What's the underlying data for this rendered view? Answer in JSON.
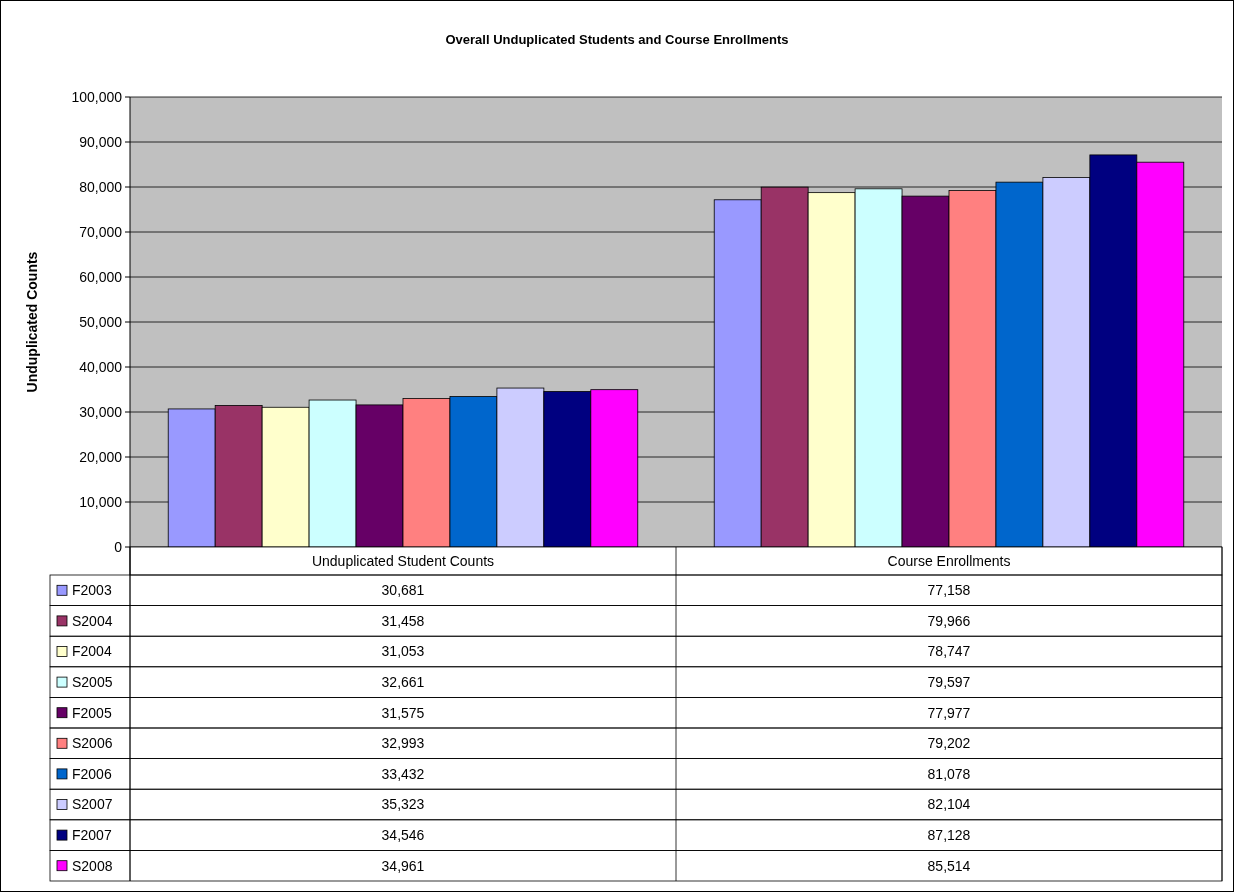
{
  "chart_data": {
    "type": "bar",
    "title": "Overall Unduplicated Students and Course Enrollments",
    "ylabel": "Unduplicated Counts",
    "categories": [
      "Unduplicated Student Counts",
      "Course Enrollments"
    ],
    "series": [
      {
        "name": "F2003",
        "color": "#9999ff",
        "values": [
          30681,
          77158
        ],
        "value_labels": [
          "30,681",
          "77,158"
        ]
      },
      {
        "name": "S2004",
        "color": "#993366",
        "values": [
          31458,
          79966
        ],
        "value_labels": [
          "31,458",
          "79,966"
        ]
      },
      {
        "name": "F2004",
        "color": "#ffffcc",
        "values": [
          31053,
          78747
        ],
        "value_labels": [
          "31,053",
          "78,747"
        ]
      },
      {
        "name": "S2005",
        "color": "#ccffff",
        "values": [
          32661,
          79597
        ],
        "value_labels": [
          "32,661",
          "79,597"
        ]
      },
      {
        "name": "F2005",
        "color": "#660066",
        "values": [
          31575,
          77977
        ],
        "value_labels": [
          "31,575",
          "77,977"
        ]
      },
      {
        "name": "S2006",
        "color": "#ff8080",
        "values": [
          32993,
          79202
        ],
        "value_labels": [
          "32,993",
          "79,202"
        ]
      },
      {
        "name": "F2006",
        "color": "#0066cc",
        "values": [
          33432,
          81078
        ],
        "value_labels": [
          "33,432",
          "81,078"
        ]
      },
      {
        "name": "S2007",
        "color": "#ccccff",
        "values": [
          35323,
          82104
        ],
        "value_labels": [
          "35,323",
          "82,104"
        ]
      },
      {
        "name": "F2007",
        "color": "#000080",
        "values": [
          34546,
          87128
        ],
        "value_labels": [
          "34,546",
          "87,128"
        ]
      },
      {
        "name": "S2008",
        "color": "#ff00ff",
        "values": [
          34961,
          85514
        ],
        "value_labels": [
          "34,961",
          "85,514"
        ]
      }
    ],
    "ylim": [
      0,
      100000
    ],
    "yticks": [
      {
        "value": 0,
        "label": "0"
      },
      {
        "value": 10000,
        "label": "10,000"
      },
      {
        "value": 20000,
        "label": "20,000"
      },
      {
        "value": 30000,
        "label": "30,000"
      },
      {
        "value": 40000,
        "label": "40,000"
      },
      {
        "value": 50000,
        "label": "50,000"
      },
      {
        "value": 60000,
        "label": "60,000"
      },
      {
        "value": 70000,
        "label": "70,000"
      },
      {
        "value": 80000,
        "label": "80,000"
      },
      {
        "value": 90000,
        "label": "90,000"
      },
      {
        "value": 100000,
        "label": "100,000"
      }
    ],
    "grid": "y",
    "legend": "bottom"
  }
}
